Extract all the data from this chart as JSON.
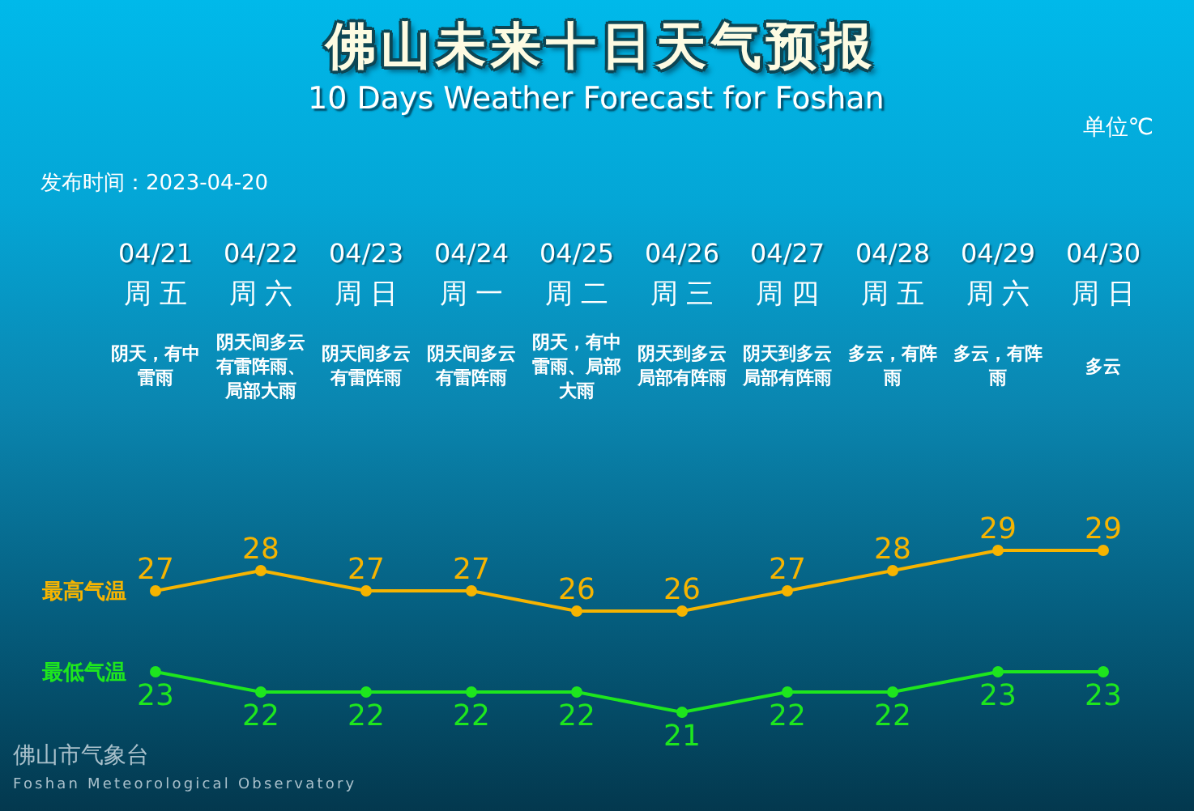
{
  "chart_data": {
    "type": "line",
    "title": "佛山未来十日天气预报",
    "subtitle": "10 Days Weather Forecast for Foshan",
    "categories": [
      "04/21",
      "04/22",
      "04/23",
      "04/24",
      "04/25",
      "04/26",
      "04/27",
      "04/28",
      "04/29",
      "04/30"
    ],
    "series": [
      {
        "name": "最高气温",
        "color": "#f6b400",
        "values": [
          27,
          28,
          27,
          27,
          26,
          26,
          27,
          28,
          29,
          29
        ]
      },
      {
        "name": "最低气温",
        "color": "#1ee61e",
        "values": [
          23,
          22,
          22,
          22,
          22,
          21,
          22,
          22,
          23,
          23
        ]
      }
    ],
    "data_labels": true,
    "marker": "circle",
    "line_style": "solid",
    "annotations": [
      "单位℃",
      "发布时间：2023-04-20",
      "周五",
      "周六",
      "周日",
      "周一",
      "周二",
      "周三",
      "周四",
      "周五",
      "周六",
      "周日",
      "阴天，有中雷雨",
      "阴天间多云有雷阵雨、局部大雨",
      "阴天间多云有雷阵雨",
      "阴天间多云有雷阵雨",
      "阴天，有中雷雨、局部大雨",
      "阴天到多云局部有阵雨",
      "阴天到多云局部有阵雨",
      "多云，有阵雨",
      "多云，有阵雨",
      "多云",
      "佛山市气象台",
      "Foshan Meteorological Observatory"
    ]
  }
}
